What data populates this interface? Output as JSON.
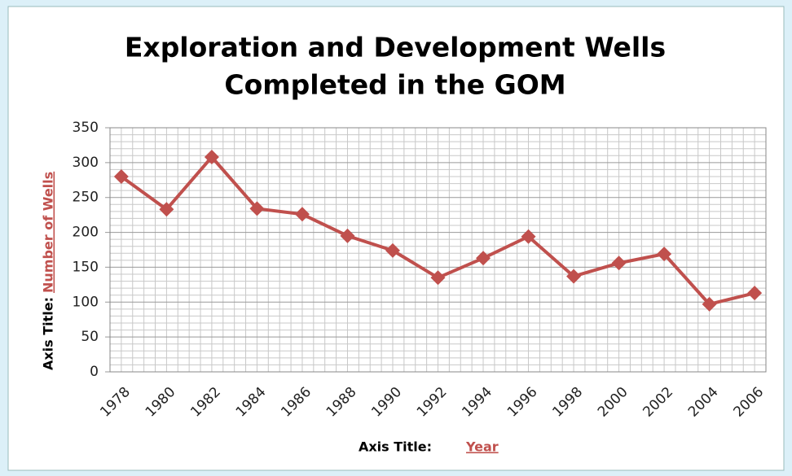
{
  "chart_data": {
    "type": "line",
    "title": [
      "Exploration and Development Wells",
      "Completed in the GOM"
    ],
    "xlabel_prefix": "Axis Title:",
    "xlabel": "Year",
    "ylabel_prefix": "Axis Title:",
    "ylabel": "Number of Wells",
    "categories": [
      "1978",
      "1980",
      "1982",
      "1984",
      "1986",
      "1988",
      "1990",
      "1992",
      "1994",
      "1996",
      "1998",
      "2000",
      "2002",
      "2004",
      "2006"
    ],
    "values": [
      280,
      233,
      308,
      234,
      226,
      195,
      174,
      135,
      163,
      194,
      137,
      156,
      169,
      97,
      113
    ],
    "color": "#c0504d",
    "ylim": [
      0,
      350
    ],
    "yticks": [
      0,
      50,
      100,
      150,
      200,
      250,
      300,
      350
    ],
    "minor_yticks": [
      10,
      20,
      30,
      40,
      60,
      70,
      80,
      90,
      110,
      120,
      130,
      140,
      160,
      170,
      180,
      190,
      210,
      220,
      230,
      240,
      260,
      270,
      280,
      290,
      310,
      320,
      330,
      340
    ],
    "grid": true
  }
}
